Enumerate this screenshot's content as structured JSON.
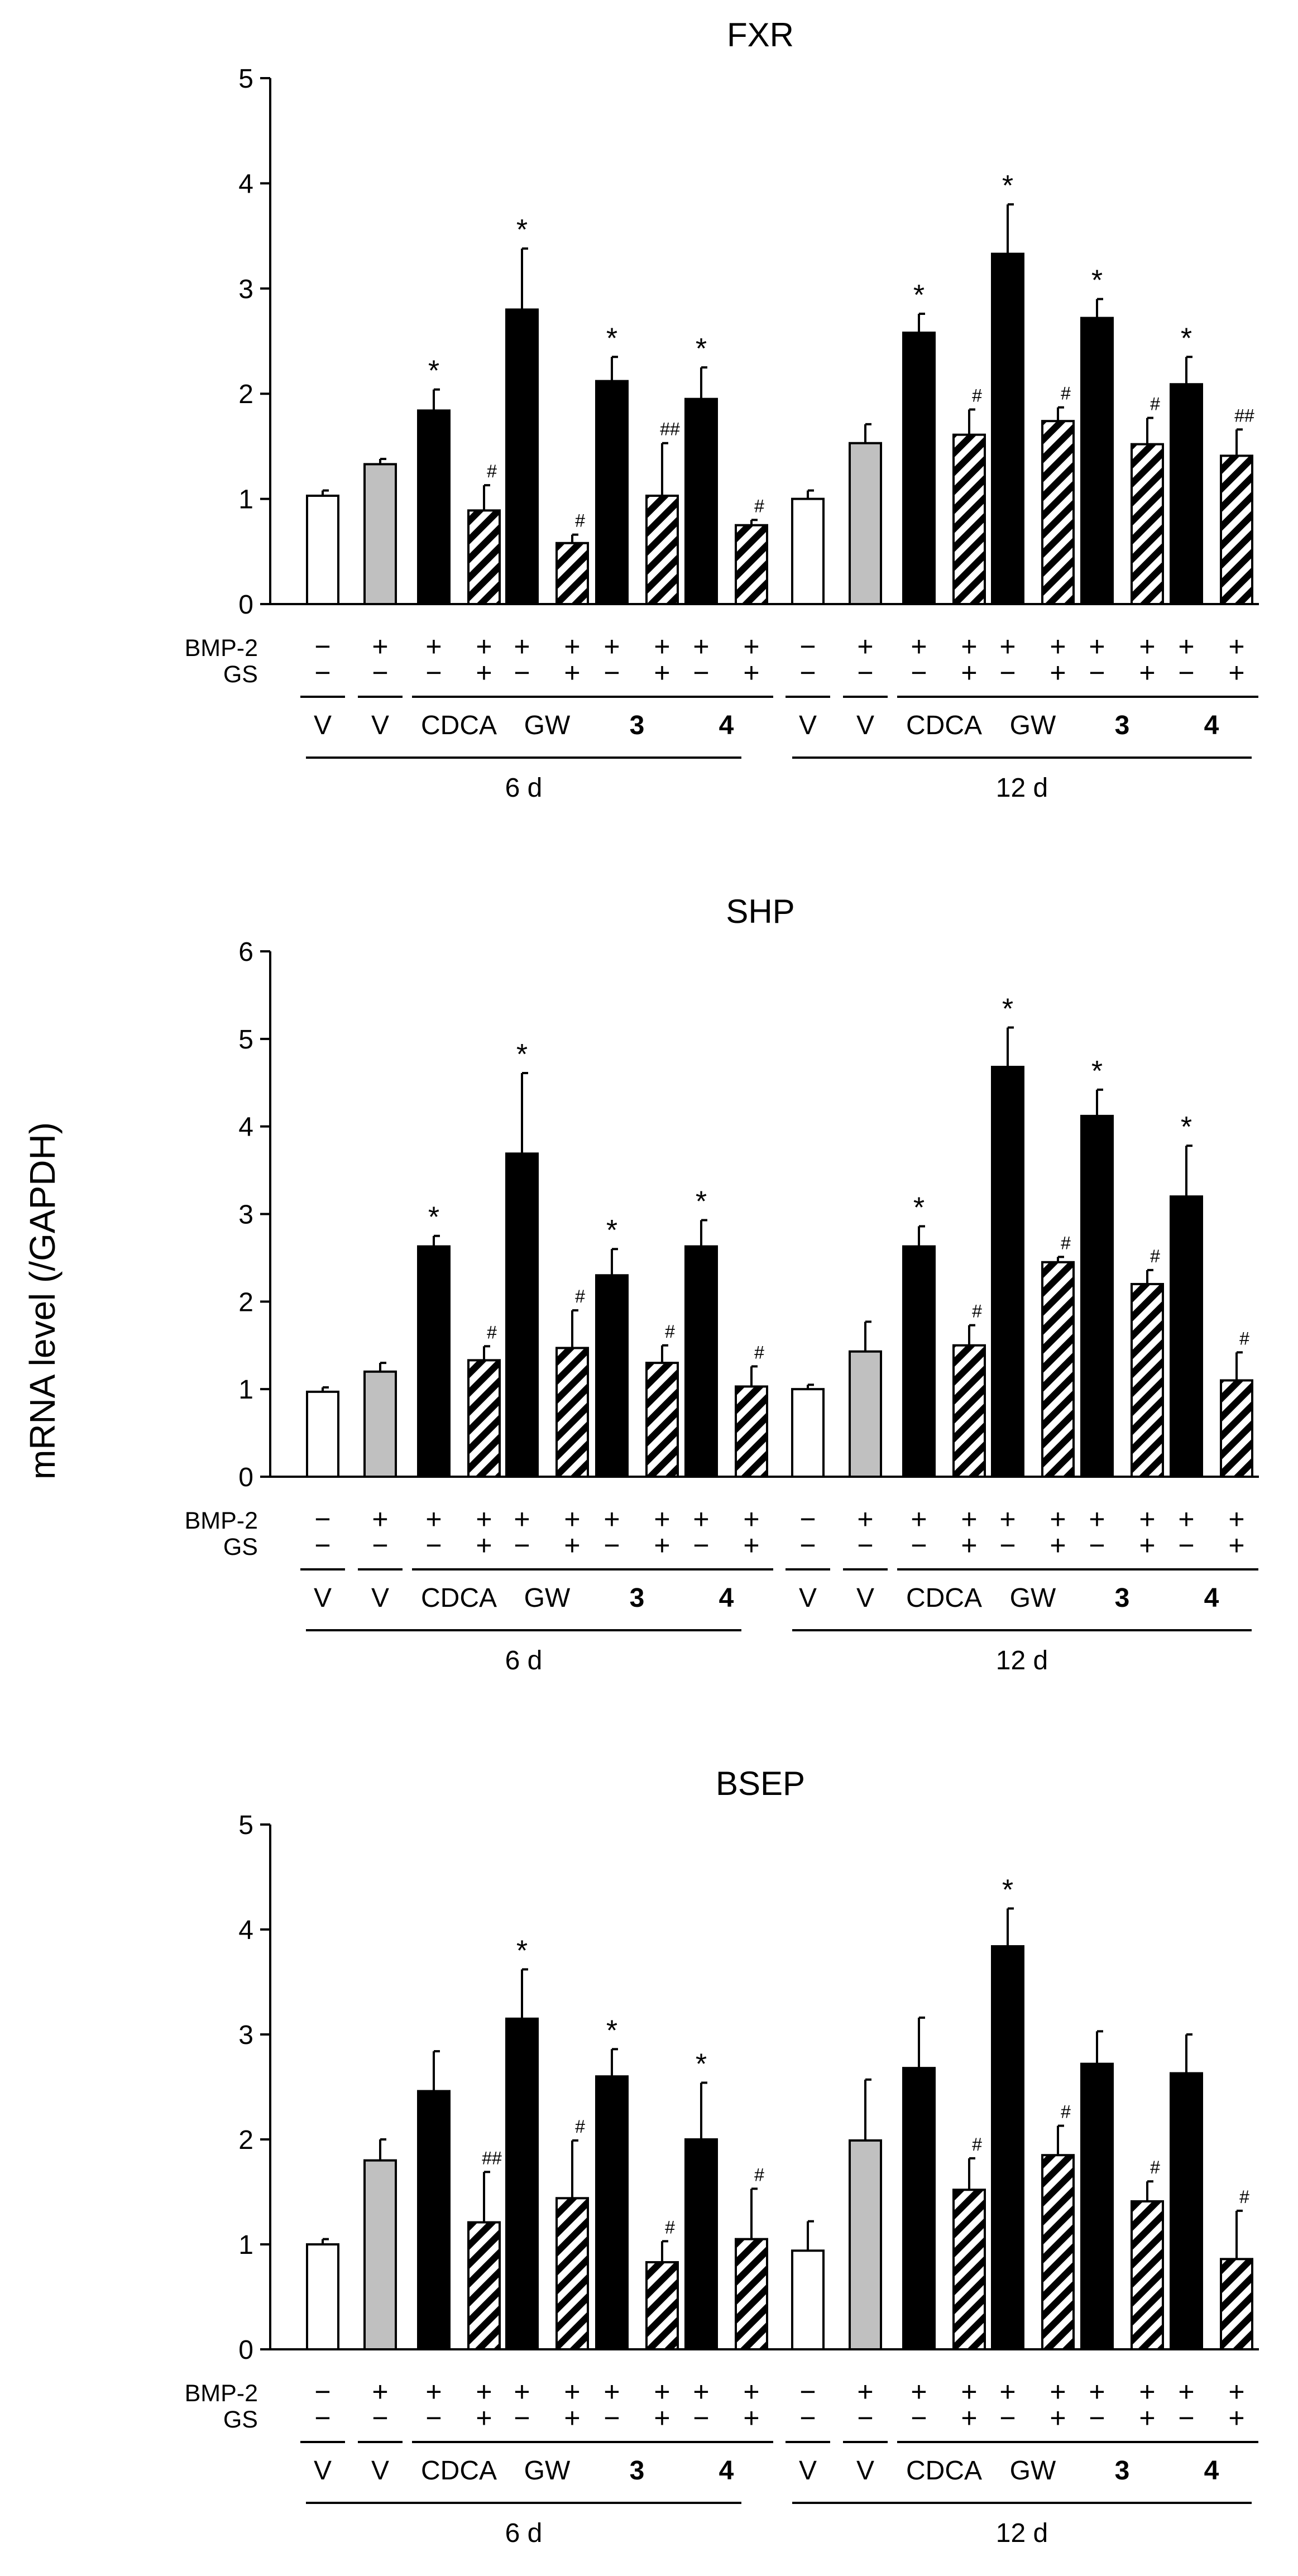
{
  "ylabel": "mRNA level  (/GAPDH)",
  "colors": {
    "vehicle": "#ffffff",
    "bmp2": "#c0c0c0",
    "agonist": "#000000",
    "gs": "hatched"
  },
  "row_labels": {
    "bmp2": "BMP-2",
    "gs": "GS"
  },
  "groups": [
    {
      "label": "V",
      "bold": false,
      "bmp2": [
        "−"
      ],
      "gs": [
        "−"
      ]
    },
    {
      "label": "V",
      "bold": false,
      "bmp2": [
        "+"
      ],
      "gs": [
        "−"
      ]
    },
    {
      "label": "CDCA",
      "bold": false,
      "bmp2": [
        "+",
        "+"
      ],
      "gs": [
        "−",
        "+"
      ]
    },
    {
      "label": "GW",
      "bold": false,
      "bmp2": [
        "+",
        "+"
      ],
      "gs": [
        "−",
        "+"
      ]
    },
    {
      "label": "3",
      "bold": true,
      "bmp2": [
        "+",
        "+"
      ],
      "gs": [
        "−",
        "+"
      ]
    },
    {
      "label": "4",
      "bold": true,
      "bmp2": [
        "+",
        "+"
      ],
      "gs": [
        "−",
        "+"
      ]
    }
  ],
  "periods": [
    "6 d",
    "12 d"
  ],
  "chart_data": [
    {
      "type": "bar",
      "title": "FXR",
      "ylabel": "mRNA level  (/GAPDH)",
      "ylim": [
        0,
        5
      ],
      "yticks": [
        "0",
        "1",
        "2",
        "3",
        "4",
        "5"
      ],
      "bars": [
        {
          "period": "6 d",
          "group": "V",
          "kind": "vehicle",
          "value": 1.03,
          "error": 0.05,
          "mark": ""
        },
        {
          "period": "6 d",
          "group": "V",
          "kind": "bmp2",
          "value": 1.33,
          "error": 0.05,
          "mark": ""
        },
        {
          "period": "6 d",
          "group": "CDCA",
          "kind": "agonist",
          "value": 1.84,
          "error": 0.2,
          "mark": "*"
        },
        {
          "period": "6 d",
          "group": "CDCA",
          "kind": "gs",
          "value": 0.89,
          "error": 0.24,
          "mark": "#"
        },
        {
          "period": "6 d",
          "group": "GW",
          "kind": "agonist",
          "value": 2.8,
          "error": 0.58,
          "mark": "*"
        },
        {
          "period": "6 d",
          "group": "GW",
          "kind": "gs",
          "value": 0.58,
          "error": 0.08,
          "mark": "#"
        },
        {
          "period": "6 d",
          "group": "3",
          "kind": "agonist",
          "value": 2.12,
          "error": 0.23,
          "mark": "*"
        },
        {
          "period": "6 d",
          "group": "3",
          "kind": "gs",
          "value": 1.03,
          "error": 0.5,
          "mark": "##"
        },
        {
          "period": "6 d",
          "group": "4",
          "kind": "agonist",
          "value": 1.95,
          "error": 0.3,
          "mark": "*"
        },
        {
          "period": "6 d",
          "group": "4",
          "kind": "gs",
          "value": 0.75,
          "error": 0.05,
          "mark": "#"
        },
        {
          "period": "12 d",
          "group": "V",
          "kind": "vehicle",
          "value": 1.0,
          "error": 0.08,
          "mark": ""
        },
        {
          "period": "12 d",
          "group": "V",
          "kind": "bmp2",
          "value": 1.53,
          "error": 0.18,
          "mark": ""
        },
        {
          "period": "12 d",
          "group": "CDCA",
          "kind": "agonist",
          "value": 2.58,
          "error": 0.18,
          "mark": "*"
        },
        {
          "period": "12 d",
          "group": "CDCA",
          "kind": "gs",
          "value": 1.61,
          "error": 0.24,
          "mark": "#"
        },
        {
          "period": "12 d",
          "group": "GW",
          "kind": "agonist",
          "value": 3.33,
          "error": 0.47,
          "mark": "*"
        },
        {
          "period": "12 d",
          "group": "GW",
          "kind": "gs",
          "value": 1.74,
          "error": 0.13,
          "mark": "#"
        },
        {
          "period": "12 d",
          "group": "3",
          "kind": "agonist",
          "value": 2.72,
          "error": 0.18,
          "mark": "*"
        },
        {
          "period": "12 d",
          "group": "3",
          "kind": "gs",
          "value": 1.52,
          "error": 0.25,
          "mark": "#"
        },
        {
          "period": "12 d",
          "group": "4",
          "kind": "agonist",
          "value": 2.09,
          "error": 0.26,
          "mark": "*"
        },
        {
          "period": "12 d",
          "group": "4",
          "kind": "gs",
          "value": 1.41,
          "error": 0.25,
          "mark": "##"
        }
      ]
    },
    {
      "type": "bar",
      "title": "SHP",
      "ylabel": "mRNA level  (/GAPDH)",
      "ylim": [
        0,
        6
      ],
      "yticks": [
        "0",
        "1",
        "2",
        "3",
        "4",
        "5",
        "6"
      ],
      "bars": [
        {
          "period": "6 d",
          "group": "V",
          "kind": "vehicle",
          "value": 0.97,
          "error": 0.05,
          "mark": ""
        },
        {
          "period": "6 d",
          "group": "V",
          "kind": "bmp2",
          "value": 1.2,
          "error": 0.1,
          "mark": ""
        },
        {
          "period": "6 d",
          "group": "CDCA",
          "kind": "agonist",
          "value": 2.63,
          "error": 0.12,
          "mark": "*"
        },
        {
          "period": "6 d",
          "group": "CDCA",
          "kind": "gs",
          "value": 1.33,
          "error": 0.16,
          "mark": "#"
        },
        {
          "period": "6 d",
          "group": "GW",
          "kind": "agonist",
          "value": 3.69,
          "error": 0.92,
          "mark": "*"
        },
        {
          "period": "6 d",
          "group": "GW",
          "kind": "gs",
          "value": 1.47,
          "error": 0.43,
          "mark": "#"
        },
        {
          "period": "6 d",
          "group": "3",
          "kind": "agonist",
          "value": 2.3,
          "error": 0.3,
          "mark": "*"
        },
        {
          "period": "6 d",
          "group": "3",
          "kind": "gs",
          "value": 1.3,
          "error": 0.2,
          "mark": "#"
        },
        {
          "period": "6 d",
          "group": "4",
          "kind": "agonist",
          "value": 2.63,
          "error": 0.3,
          "mark": "*"
        },
        {
          "period": "6 d",
          "group": "4",
          "kind": "gs",
          "value": 1.03,
          "error": 0.23,
          "mark": "#"
        },
        {
          "period": "12 d",
          "group": "V",
          "kind": "vehicle",
          "value": 1.0,
          "error": 0.05,
          "mark": ""
        },
        {
          "period": "12 d",
          "group": "V",
          "kind": "bmp2",
          "value": 1.43,
          "error": 0.34,
          "mark": ""
        },
        {
          "period": "12 d",
          "group": "CDCA",
          "kind": "agonist",
          "value": 2.63,
          "error": 0.23,
          "mark": "*"
        },
        {
          "period": "12 d",
          "group": "CDCA",
          "kind": "gs",
          "value": 1.5,
          "error": 0.23,
          "mark": "#"
        },
        {
          "period": "12 d",
          "group": "GW",
          "kind": "agonist",
          "value": 4.68,
          "error": 0.45,
          "mark": "*"
        },
        {
          "period": "12 d",
          "group": "GW",
          "kind": "gs",
          "value": 2.45,
          "error": 0.06,
          "mark": "#"
        },
        {
          "period": "12 d",
          "group": "3",
          "kind": "agonist",
          "value": 4.12,
          "error": 0.3,
          "mark": "*"
        },
        {
          "period": "12 d",
          "group": "3",
          "kind": "gs",
          "value": 2.2,
          "error": 0.16,
          "mark": "#"
        },
        {
          "period": "12 d",
          "group": "4",
          "kind": "agonist",
          "value": 3.2,
          "error": 0.58,
          "mark": "*"
        },
        {
          "period": "12 d",
          "group": "4",
          "kind": "gs",
          "value": 1.1,
          "error": 0.32,
          "mark": "#"
        }
      ]
    },
    {
      "type": "bar",
      "title": "BSEP",
      "ylabel": "mRNA level  (/GAPDH)",
      "ylim": [
        0,
        5
      ],
      "yticks": [
        "0",
        "1",
        "2",
        "3",
        "4",
        "5"
      ],
      "bars": [
        {
          "period": "6 d",
          "group": "V",
          "kind": "vehicle",
          "value": 1.0,
          "error": 0.05,
          "mark": ""
        },
        {
          "period": "6 d",
          "group": "V",
          "kind": "bmp2",
          "value": 1.8,
          "error": 0.2,
          "mark": ""
        },
        {
          "period": "6 d",
          "group": "CDCA",
          "kind": "agonist",
          "value": 2.46,
          "error": 0.38,
          "mark": ""
        },
        {
          "period": "6 d",
          "group": "CDCA",
          "kind": "gs",
          "value": 1.21,
          "error": 0.48,
          "mark": "##"
        },
        {
          "period": "6 d",
          "group": "GW",
          "kind": "agonist",
          "value": 3.15,
          "error": 0.47,
          "mark": "*"
        },
        {
          "period": "6 d",
          "group": "GW",
          "kind": "gs",
          "value": 1.44,
          "error": 0.55,
          "mark": "#"
        },
        {
          "period": "6 d",
          "group": "3",
          "kind": "agonist",
          "value": 2.6,
          "error": 0.26,
          "mark": "*"
        },
        {
          "period": "6 d",
          "group": "3",
          "kind": "gs",
          "value": 0.83,
          "error": 0.2,
          "mark": "#"
        },
        {
          "period": "6 d",
          "group": "4",
          "kind": "agonist",
          "value": 2.0,
          "error": 0.54,
          "mark": "*"
        },
        {
          "period": "6 d",
          "group": "4",
          "kind": "gs",
          "value": 1.05,
          "error": 0.48,
          "mark": "#"
        },
        {
          "period": "12 d",
          "group": "V",
          "kind": "vehicle",
          "value": 0.94,
          "error": 0.28,
          "mark": ""
        },
        {
          "period": "12 d",
          "group": "V",
          "kind": "bmp2",
          "value": 1.99,
          "error": 0.58,
          "mark": ""
        },
        {
          "period": "12 d",
          "group": "CDCA",
          "kind": "agonist",
          "value": 2.68,
          "error": 0.48,
          "mark": ""
        },
        {
          "period": "12 d",
          "group": "CDCA",
          "kind": "gs",
          "value": 1.52,
          "error": 0.3,
          "mark": "#"
        },
        {
          "period": "12 d",
          "group": "GW",
          "kind": "agonist",
          "value": 3.84,
          "error": 0.36,
          "mark": "*"
        },
        {
          "period": "12 d",
          "group": "GW",
          "kind": "gs",
          "value": 1.85,
          "error": 0.28,
          "mark": "#"
        },
        {
          "period": "12 d",
          "group": "3",
          "kind": "agonist",
          "value": 2.72,
          "error": 0.31,
          "mark": ""
        },
        {
          "period": "12 d",
          "group": "3",
          "kind": "gs",
          "value": 1.41,
          "error": 0.19,
          "mark": "#"
        },
        {
          "period": "12 d",
          "group": "4",
          "kind": "agonist",
          "value": 2.63,
          "error": 0.37,
          "mark": ""
        },
        {
          "period": "12 d",
          "group": "4",
          "kind": "gs",
          "value": 0.86,
          "error": 0.46,
          "mark": "#"
        }
      ]
    }
  ]
}
